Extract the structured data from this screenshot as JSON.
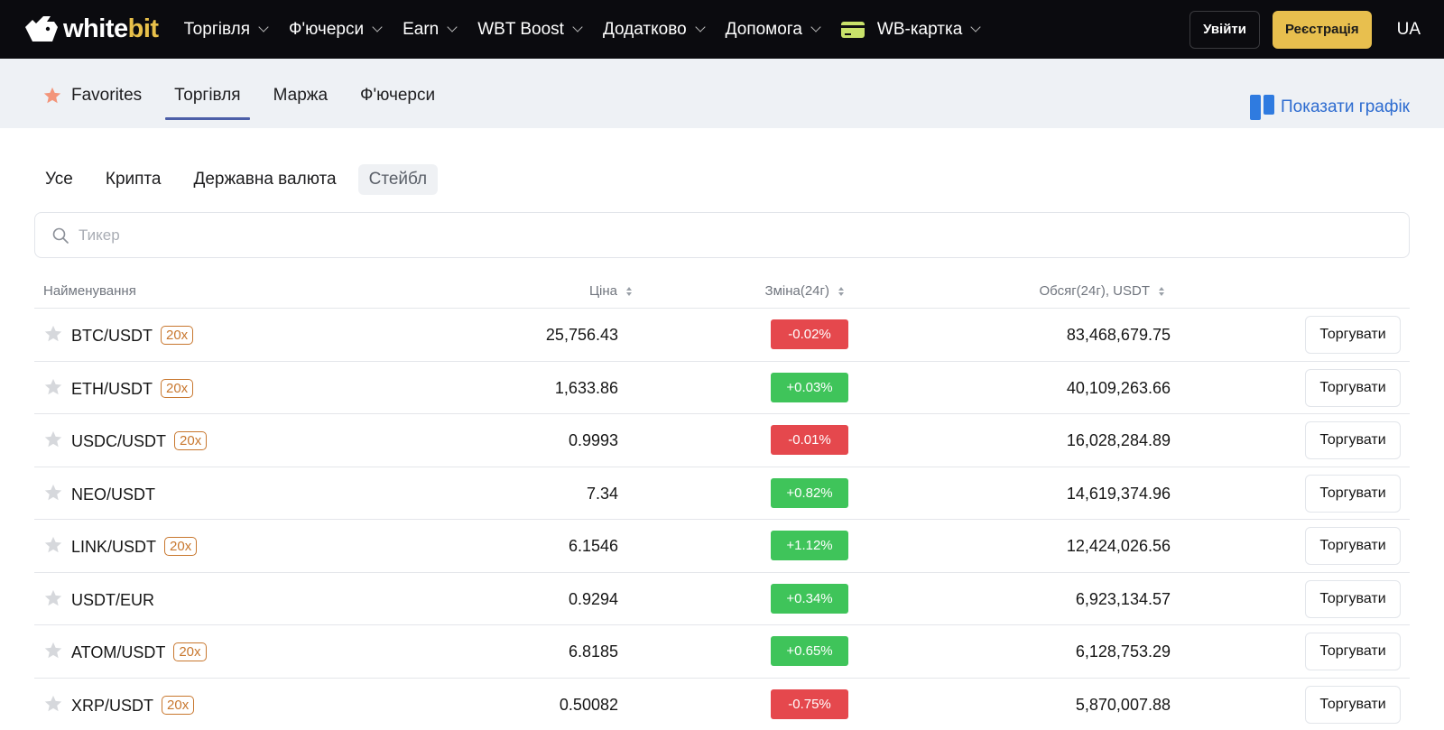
{
  "header": {
    "logo": {
      "text_main": "white",
      "text_accent": "bit"
    },
    "nav": [
      {
        "label": "Торгівля",
        "dropdown": true
      },
      {
        "label": "Ф'ючерси",
        "dropdown": true
      },
      {
        "label": "Earn",
        "dropdown": true
      },
      {
        "label": "WBT Boost",
        "dropdown": true
      },
      {
        "label": "Додатково",
        "dropdown": true
      },
      {
        "label": "Допомога",
        "dropdown": true
      },
      {
        "label": "WB-картка",
        "dropdown": true,
        "icon": "card-icon"
      }
    ],
    "login_label": "Увійти",
    "register_label": "Реєстрація",
    "language": "UA"
  },
  "market_tabs": {
    "items": [
      "Favorites",
      "Торгівля",
      "Маржа",
      "Ф'ючерси"
    ],
    "active": "Торгівля",
    "show_chart_label": "Показати графік"
  },
  "filters": {
    "items": [
      "Усе",
      "Крипта",
      "Державна валюта",
      "Стейбл"
    ],
    "active": "Стейбл"
  },
  "search": {
    "placeholder": "Тикер"
  },
  "table": {
    "headers": {
      "name": "Найменування",
      "price": "Ціна",
      "change": "Зміна(24г)",
      "volume": "Обсяг(24г), USDT"
    },
    "trade_label": "Торгувати",
    "rows": [
      {
        "pair": "BTC/USDT",
        "leverage": "20x",
        "price": "25,756.43",
        "change": "-0.02%",
        "direction": "down",
        "volume": "83,468,679.75"
      },
      {
        "pair": "ETH/USDT",
        "leverage": "20x",
        "price": "1,633.86",
        "change": "+0.03%",
        "direction": "up",
        "volume": "40,109,263.66"
      },
      {
        "pair": "USDC/USDT",
        "leverage": "20x",
        "price": "0.9993",
        "change": "-0.01%",
        "direction": "down",
        "volume": "16,028,284.89"
      },
      {
        "pair": "NEO/USDT",
        "leverage": "",
        "price": "7.34",
        "change": "+0.82%",
        "direction": "up",
        "volume": "14,619,374.96"
      },
      {
        "pair": "LINK/USDT",
        "leverage": "20x",
        "price": "6.1546",
        "change": "+1.12%",
        "direction": "up",
        "volume": "12,424,026.56"
      },
      {
        "pair": "USDT/EUR",
        "leverage": "",
        "price": "0.9294",
        "change": "+0.34%",
        "direction": "up",
        "volume": "6,923,134.57"
      },
      {
        "pair": "ATOM/USDT",
        "leverage": "20x",
        "price": "6.8185",
        "change": "+0.65%",
        "direction": "up",
        "volume": "6,128,753.29"
      },
      {
        "pair": "XRP/USDT",
        "leverage": "20x",
        "price": "0.50082",
        "change": "-0.75%",
        "direction": "down",
        "volume": "5,870,007.88"
      }
    ]
  },
  "colors": {
    "up": "#3fc45a",
    "down": "#e5484d",
    "accent": "#e8bf4e",
    "link": "#2c6bd0"
  }
}
